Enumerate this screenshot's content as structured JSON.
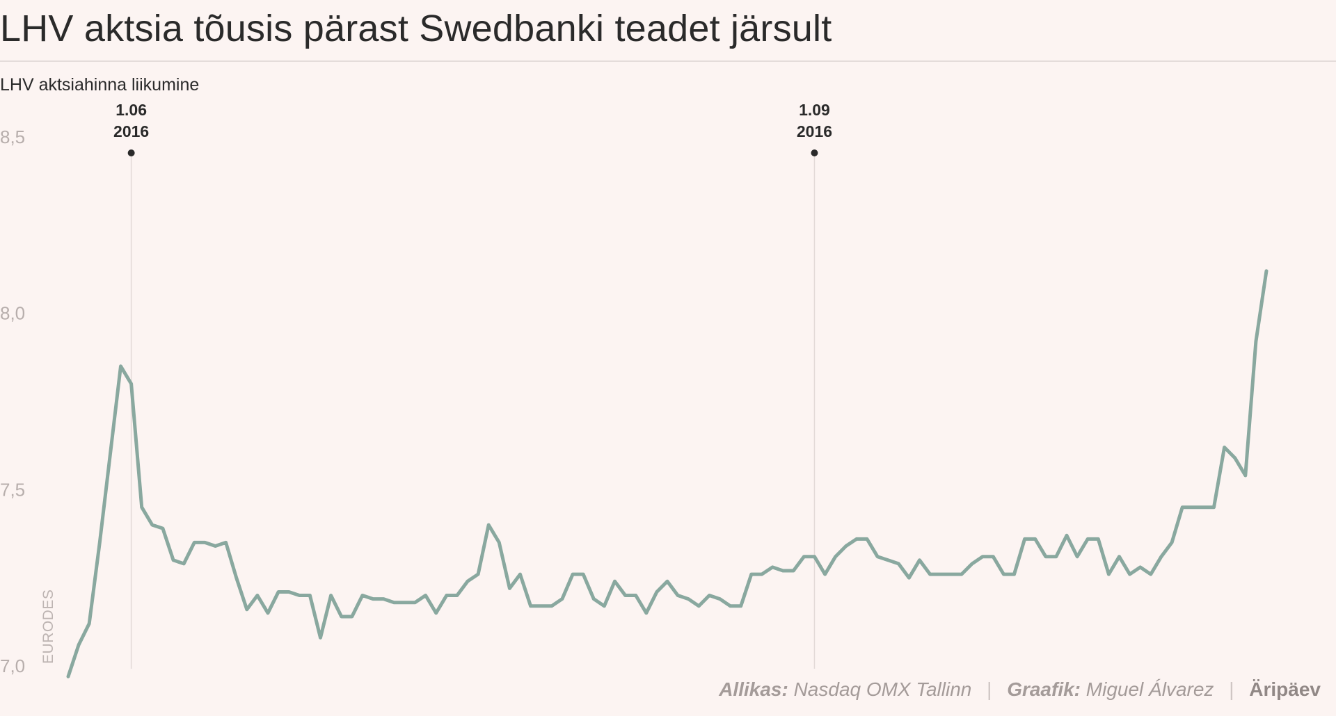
{
  "title": "LHV aktsia tõusis pärast Swedbanki teadet järsult",
  "subtitle": "LHV aktsiahinna liikumine",
  "footer": {
    "source_label": "Allikas:",
    "source_value": "Nasdaq OMX Tallinn",
    "author_label": "Graafik:",
    "author_value": "Miguel Álvarez",
    "brand": "Äripäev"
  },
  "colors": {
    "line": "#89a89f",
    "background": "#fcf4f2",
    "annotation": "#2a2a2a"
  },
  "chart_data": {
    "type": "line",
    "ylabel": "EURODES",
    "ylim": [
      7.0,
      8.5
    ],
    "yticks": [
      "7,0",
      "7,5",
      "8,0",
      "8,5"
    ],
    "ytick_values": [
      7.0,
      7.5,
      8.0,
      8.5
    ],
    "grid": false,
    "annotations": [
      {
        "index": 6,
        "line1": "1.06",
        "line2": "2016"
      },
      {
        "index": 71,
        "line1": "1.09",
        "line2": "2016"
      }
    ],
    "values": [
      6.97,
      7.06,
      7.12,
      7.35,
      7.6,
      7.85,
      7.8,
      7.45,
      7.4,
      7.39,
      7.3,
      7.29,
      7.35,
      7.35,
      7.34,
      7.35,
      7.25,
      7.16,
      7.2,
      7.15,
      7.21,
      7.21,
      7.2,
      7.2,
      7.08,
      7.2,
      7.14,
      7.14,
      7.2,
      7.19,
      7.19,
      7.18,
      7.18,
      7.18,
      7.2,
      7.15,
      7.2,
      7.2,
      7.24,
      7.26,
      7.4,
      7.35,
      7.22,
      7.26,
      7.17,
      7.17,
      7.17,
      7.19,
      7.26,
      7.26,
      7.19,
      7.17,
      7.24,
      7.2,
      7.2,
      7.15,
      7.21,
      7.24,
      7.2,
      7.19,
      7.17,
      7.2,
      7.19,
      7.17,
      7.17,
      7.26,
      7.26,
      7.28,
      7.27,
      7.27,
      7.31,
      7.31,
      7.26,
      7.31,
      7.34,
      7.36,
      7.36,
      7.31,
      7.3,
      7.29,
      7.25,
      7.3,
      7.26,
      7.26,
      7.26,
      7.26,
      7.29,
      7.31,
      7.31,
      7.26,
      7.26,
      7.36,
      7.36,
      7.31,
      7.31,
      7.37,
      7.31,
      7.36,
      7.36,
      7.26,
      7.31,
      7.26,
      7.28,
      7.26,
      7.31,
      7.35,
      7.45,
      7.45,
      7.45,
      7.45,
      7.62,
      7.59,
      7.54,
      7.92,
      8.12
    ]
  }
}
